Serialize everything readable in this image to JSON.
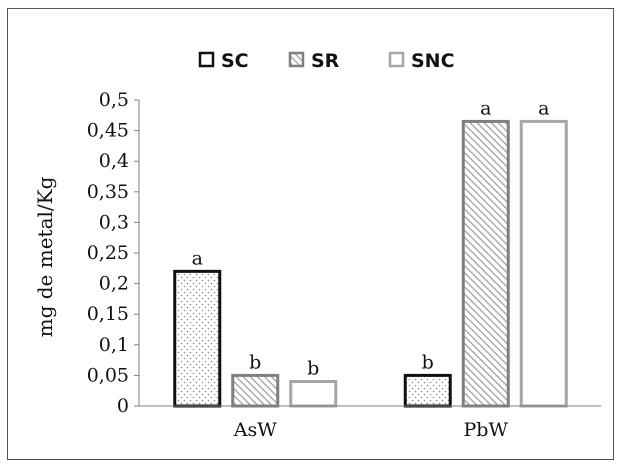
{
  "chart_data": {
    "type": "bar",
    "title": "",
    "xlabel": "",
    "ylabel": "mg de metal/Kg",
    "categories": [
      "AsW",
      "PbW"
    ],
    "ylim": [
      0,
      0.5
    ],
    "yticks": [
      0,
      0.05,
      0.1,
      0.15,
      0.2,
      0.25,
      0.3,
      0.35,
      0.4,
      0.45,
      0.5
    ],
    "ytick_labels": [
      "0",
      "0,05",
      "0,1",
      "0,15",
      "0,2",
      "0,25",
      "0,3",
      "0,35",
      "0,4",
      "0,45",
      "0,5"
    ],
    "grid": false,
    "legend_position": "top-center",
    "series": [
      {
        "name": "SC",
        "values": [
          0.22,
          0.05
        ],
        "labels": [
          "a",
          "b"
        ],
        "pattern": "dots",
        "stroke": "#111111"
      },
      {
        "name": "SR",
        "values": [
          0.05,
          0.465
        ],
        "labels": [
          "b",
          "a"
        ],
        "pattern": "hatch",
        "stroke": "#7f7f7f"
      },
      {
        "name": "SNC",
        "values": [
          0.04,
          0.465
        ],
        "labels": [
          "b",
          "a"
        ],
        "pattern": "none",
        "stroke": "#a6a6a6"
      }
    ]
  }
}
